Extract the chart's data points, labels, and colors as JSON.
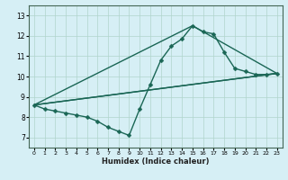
{
  "xlabel": "Humidex (Indice chaleur)",
  "bg_color": "#d6eff5",
  "grid_color": "#b0d4cc",
  "line_color": "#1a6655",
  "xlim": [
    -0.5,
    23.5
  ],
  "ylim": [
    6.5,
    13.5
  ],
  "xticks": [
    0,
    1,
    2,
    3,
    4,
    5,
    6,
    7,
    8,
    9,
    10,
    11,
    12,
    13,
    14,
    15,
    16,
    17,
    18,
    19,
    20,
    21,
    22,
    23
  ],
  "yticks": [
    7,
    8,
    9,
    10,
    11,
    12,
    13
  ],
  "main_x": [
    0,
    1,
    2,
    3,
    4,
    5,
    6,
    7,
    8,
    9,
    10,
    11,
    12,
    13,
    14,
    15,
    16,
    17,
    18,
    19,
    20,
    21,
    22,
    23
  ],
  "main_y": [
    8.6,
    8.4,
    8.3,
    8.2,
    8.1,
    8.0,
    7.8,
    7.5,
    7.3,
    7.1,
    8.4,
    9.6,
    10.8,
    11.5,
    11.85,
    12.5,
    12.2,
    12.1,
    11.2,
    10.4,
    10.25,
    10.1,
    10.1,
    10.15
  ],
  "line1_x": [
    0,
    23
  ],
  "line1_y": [
    8.6,
    10.15
  ],
  "line2_x": [
    0,
    23
  ],
  "line2_y": [
    8.6,
    10.15
  ],
  "line3_x": [
    0,
    15,
    23
  ],
  "line3_y": [
    8.6,
    12.5,
    10.15
  ],
  "linewidth": 1.0,
  "markersize": 2.5
}
